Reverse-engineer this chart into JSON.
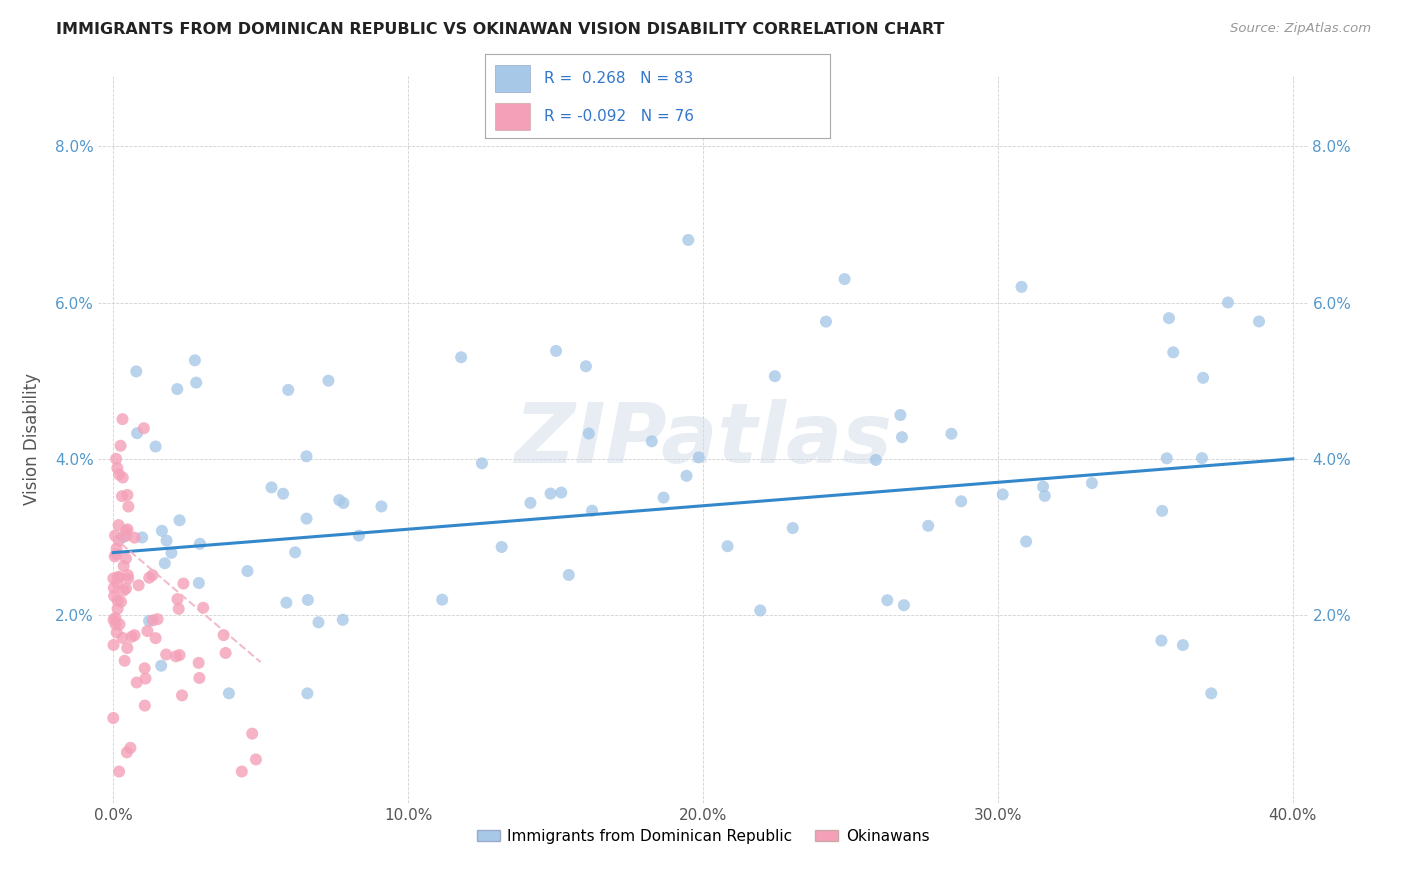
{
  "title": "IMMIGRANTS FROM DOMINICAN REPUBLIC VS OKINAWAN VISION DISABILITY CORRELATION CHART",
  "source": "Source: ZipAtlas.com",
  "ylabel": "Vision Disability",
  "legend_label1": "Immigrants from Dominican Republic",
  "legend_label2": "Okinawans",
  "legend_r1": "R =  0.268",
  "legend_n1": "N = 83",
  "legend_r2": "R = -0.092",
  "legend_n2": "N = 76",
  "color_blue": "#a8c8e8",
  "color_pink": "#f4a0b8",
  "color_blue_line": "#3388cc",
  "color_pink_line": "#f0b0c0",
  "watermark_color": "#c8d8e8",
  "xlim": [
    0.0,
    0.4
  ],
  "ylim": [
    0.0,
    0.088
  ],
  "xticks": [
    0.0,
    0.1,
    0.2,
    0.3,
    0.4
  ],
  "yticks": [
    0.02,
    0.04,
    0.06,
    0.08
  ],
  "ytick_labels": [
    "2.0%",
    "4.0%",
    "6.0%",
    "8.0%"
  ],
  "xtick_labels": [
    "0.0%",
    "10.0%",
    "20.0%",
    "30.0%",
    "40.0%"
  ],
  "blue_trend_start_y": 0.028,
  "blue_trend_end_y": 0.04,
  "pink_trend_start_y": 0.03,
  "pink_trend_end_y": 0.014
}
